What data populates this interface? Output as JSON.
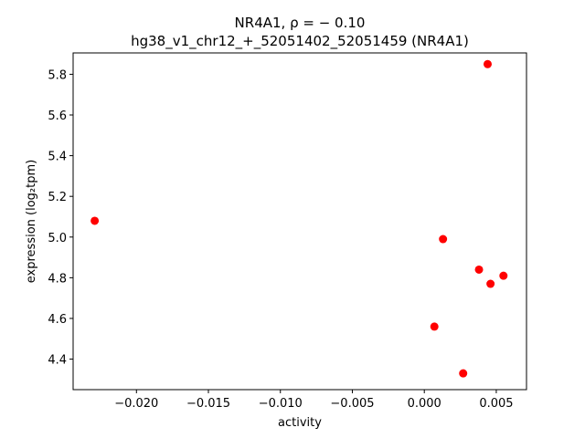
{
  "chart_data": {
    "type": "scatter",
    "title_line1": "NR4A1, ρ = − 0.10",
    "title_line2": "hg38_v1_chr12_+_52051402_52051459 (NR4A1)",
    "xlabel": "activity",
    "ylabel": "expression (log₂tpm)",
    "xlim": [
      -0.0244,
      0.0071
    ],
    "ylim": [
      4.25,
      5.905
    ],
    "xticks": [
      -0.02,
      -0.015,
      -0.01,
      -0.005,
      0.0,
      0.005
    ],
    "xtick_labels": [
      "−0.020",
      "−0.015",
      "−0.010",
      "−0.005",
      "0.000",
      "0.005"
    ],
    "yticks": [
      4.4,
      4.6,
      4.8,
      5.0,
      5.2,
      5.4,
      5.6,
      5.8
    ],
    "ytick_labels": [
      "4.4",
      "4.6",
      "4.8",
      "5.0",
      "5.2",
      "5.4",
      "5.6",
      "5.8"
    ],
    "marker_color": "#ff0000",
    "grid": false,
    "legend": "none",
    "points": [
      {
        "x": -0.0229,
        "y": 5.08
      },
      {
        "x": 0.0013,
        "y": 4.99
      },
      {
        "x": 0.0044,
        "y": 5.85
      },
      {
        "x": 0.0038,
        "y": 4.84
      },
      {
        "x": 0.0055,
        "y": 4.81
      },
      {
        "x": 0.0046,
        "y": 4.77
      },
      {
        "x": 0.0007,
        "y": 4.56
      },
      {
        "x": 0.0027,
        "y": 4.33
      }
    ]
  }
}
